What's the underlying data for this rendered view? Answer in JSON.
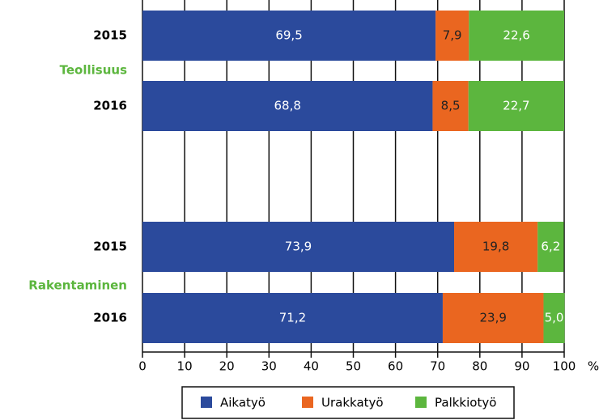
{
  "chart_data": {
    "type": "stacked-barh",
    "categories": [
      "2015",
      "2016",
      "2015",
      "2016"
    ],
    "groups": [
      "Teollisuus",
      "Rakentaminen"
    ],
    "series": [
      {
        "name": "Aikatyö",
        "color": "#2b4a9c",
        "values": [
          69.5,
          68.8,
          73.9,
          71.2
        ],
        "value_labels": [
          "69,5",
          "68,8",
          "73,9",
          "71,2"
        ]
      },
      {
        "name": "Urakkatyö",
        "color": "#ea6620",
        "values": [
          7.9,
          8.5,
          19.8,
          23.9
        ],
        "value_labels": [
          "7,9",
          "8,5",
          "19,8",
          "23,9"
        ]
      },
      {
        "name": "Palkkiotyö",
        "color": "#5cb63e",
        "values": [
          22.6,
          22.7,
          6.2,
          5.0
        ],
        "value_labels": [
          "22,6",
          "22,7",
          "6,2",
          "5,0"
        ]
      }
    ],
    "xlim": [
      0,
      100
    ],
    "xticks": [
      0,
      10,
      20,
      30,
      40,
      50,
      60,
      70,
      80,
      90,
      100
    ],
    "xlabel": "%",
    "grid": true,
    "legend": "bottom"
  }
}
